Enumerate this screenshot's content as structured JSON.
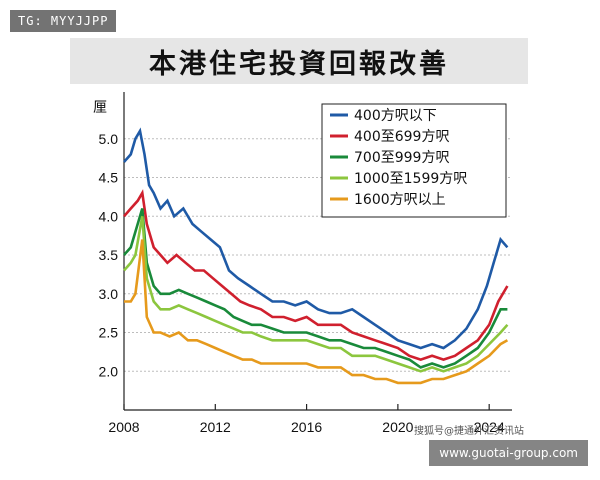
{
  "watermark_tl": "TG: MYYJJPP",
  "watermark_br": "www.guotai-group.com",
  "source_note": "搜狐号@捷通外汇资讯站",
  "chart_data": {
    "type": "line",
    "title": "本港住宅投資回報改善",
    "ylabel": "厘",
    "xlabel": "",
    "xlim": [
      2008,
      2025
    ],
    "ylim": [
      1.5,
      5.5
    ],
    "x_ticks": [
      "2008",
      "2012",
      "2016",
      "2020",
      "2024"
    ],
    "y_ticks": [
      "2.0",
      "2.5",
      "3.0",
      "3.5",
      "4.0",
      "4.5",
      "5.0"
    ],
    "legend_position": "top-right",
    "series": [
      {
        "name": "400方呎以下",
        "color": "#1f5aa6",
        "x": [
          2008.0,
          2008.3,
          2008.5,
          2008.7,
          2008.9,
          2009.1,
          2009.3,
          2009.6,
          2009.9,
          2010.2,
          2010.6,
          2011.0,
          2011.4,
          2011.8,
          2012.2,
          2012.6,
          2013.0,
          2013.5,
          2014.0,
          2014.5,
          2015.0,
          2015.5,
          2016.0,
          2016.5,
          2017.0,
          2017.5,
          2018.0,
          2018.5,
          2019.0,
          2019.5,
          2020.0,
          2020.5,
          2021.0,
          2021.5,
          2022.0,
          2022.5,
          2023.0,
          2023.5,
          2023.9,
          2024.2,
          2024.5,
          2024.8
        ],
        "values": [
          4.7,
          4.8,
          5.0,
          5.1,
          4.8,
          4.4,
          4.3,
          4.1,
          4.2,
          4.0,
          4.1,
          3.9,
          3.8,
          3.7,
          3.6,
          3.3,
          3.2,
          3.1,
          3.0,
          2.9,
          2.9,
          2.85,
          2.9,
          2.8,
          2.75,
          2.75,
          2.8,
          2.7,
          2.6,
          2.5,
          2.4,
          2.35,
          2.3,
          2.35,
          2.3,
          2.4,
          2.55,
          2.8,
          3.1,
          3.4,
          3.7,
          3.6
        ]
      },
      {
        "name": "400至699方呎",
        "color": "#d0202e",
        "x": [
          2008.0,
          2008.3,
          2008.6,
          2008.8,
          2009.0,
          2009.3,
          2009.6,
          2009.9,
          2010.3,
          2010.7,
          2011.1,
          2011.5,
          2011.9,
          2012.3,
          2012.7,
          2013.1,
          2013.5,
          2014.0,
          2014.5,
          2015.0,
          2015.5,
          2016.0,
          2016.5,
          2017.0,
          2017.5,
          2018.0,
          2018.5,
          2019.0,
          2019.5,
          2020.0,
          2020.5,
          2021.0,
          2021.5,
          2022.0,
          2022.5,
          2023.0,
          2023.5,
          2024.0,
          2024.4,
          2024.8
        ],
        "values": [
          4.0,
          4.1,
          4.2,
          4.3,
          3.9,
          3.6,
          3.5,
          3.4,
          3.5,
          3.4,
          3.3,
          3.3,
          3.2,
          3.1,
          3.0,
          2.9,
          2.85,
          2.8,
          2.7,
          2.7,
          2.65,
          2.7,
          2.6,
          2.6,
          2.6,
          2.5,
          2.45,
          2.4,
          2.35,
          2.3,
          2.2,
          2.15,
          2.2,
          2.15,
          2.2,
          2.3,
          2.4,
          2.6,
          2.9,
          3.1
        ]
      },
      {
        "name": "700至999方呎",
        "color": "#198a3a",
        "x": [
          2008.0,
          2008.3,
          2008.5,
          2008.8,
          2009.0,
          2009.3,
          2009.6,
          2010.0,
          2010.4,
          2010.8,
          2011.2,
          2011.6,
          2012.0,
          2012.4,
          2012.8,
          2013.2,
          2013.6,
          2014.0,
          2014.5,
          2015.0,
          2015.5,
          2016.0,
          2016.5,
          2017.0,
          2017.5,
          2018.0,
          2018.5,
          2019.0,
          2019.5,
          2020.0,
          2020.5,
          2021.0,
          2021.5,
          2022.0,
          2022.5,
          2023.0,
          2023.5,
          2024.0,
          2024.5,
          2024.8
        ],
        "values": [
          3.5,
          3.6,
          3.8,
          4.1,
          3.4,
          3.1,
          3.0,
          3.0,
          3.05,
          3.0,
          2.95,
          2.9,
          2.85,
          2.8,
          2.7,
          2.65,
          2.6,
          2.6,
          2.55,
          2.5,
          2.5,
          2.5,
          2.45,
          2.4,
          2.4,
          2.35,
          2.3,
          2.3,
          2.25,
          2.2,
          2.15,
          2.05,
          2.1,
          2.05,
          2.1,
          2.2,
          2.3,
          2.5,
          2.8,
          2.8
        ]
      },
      {
        "name": "1000至1599方呎",
        "color": "#8cc63e",
        "x": [
          2008.0,
          2008.3,
          2008.5,
          2008.8,
          2009.0,
          2009.3,
          2009.6,
          2010.0,
          2010.4,
          2010.8,
          2011.2,
          2011.6,
          2012.0,
          2012.4,
          2012.8,
          2013.2,
          2013.6,
          2014.0,
          2014.5,
          2015.0,
          2015.5,
          2016.0,
          2016.5,
          2017.0,
          2017.5,
          2018.0,
          2018.5,
          2019.0,
          2019.5,
          2020.0,
          2020.5,
          2021.0,
          2021.5,
          2022.0,
          2022.5,
          2023.0,
          2023.5,
          2024.0,
          2024.5,
          2024.8
        ],
        "values": [
          3.3,
          3.4,
          3.5,
          4.0,
          3.2,
          2.9,
          2.8,
          2.8,
          2.85,
          2.8,
          2.75,
          2.7,
          2.65,
          2.6,
          2.55,
          2.5,
          2.5,
          2.45,
          2.4,
          2.4,
          2.4,
          2.4,
          2.35,
          2.3,
          2.3,
          2.2,
          2.2,
          2.2,
          2.15,
          2.1,
          2.05,
          2.0,
          2.05,
          2.0,
          2.05,
          2.1,
          2.2,
          2.35,
          2.5,
          2.6
        ]
      },
      {
        "name": "1600方呎以上",
        "color": "#e69a1c",
        "x": [
          2008.0,
          2008.3,
          2008.5,
          2008.8,
          2009.0,
          2009.3,
          2009.6,
          2010.0,
          2010.4,
          2010.8,
          2011.2,
          2011.6,
          2012.0,
          2012.4,
          2012.8,
          2013.2,
          2013.6,
          2014.0,
          2014.5,
          2015.0,
          2015.5,
          2016.0,
          2016.5,
          2017.0,
          2017.5,
          2018.0,
          2018.5,
          2019.0,
          2019.5,
          2020.0,
          2020.5,
          2021.0,
          2021.5,
          2022.0,
          2022.5,
          2023.0,
          2023.5,
          2024.0,
          2024.5,
          2024.8
        ],
        "values": [
          2.9,
          2.9,
          3.0,
          3.7,
          2.7,
          2.5,
          2.5,
          2.45,
          2.5,
          2.4,
          2.4,
          2.35,
          2.3,
          2.25,
          2.2,
          2.15,
          2.15,
          2.1,
          2.1,
          2.1,
          2.1,
          2.1,
          2.05,
          2.05,
          2.05,
          1.95,
          1.95,
          1.9,
          1.9,
          1.85,
          1.85,
          1.85,
          1.9,
          1.9,
          1.95,
          2.0,
          2.1,
          2.2,
          2.35,
          2.4
        ]
      }
    ]
  }
}
